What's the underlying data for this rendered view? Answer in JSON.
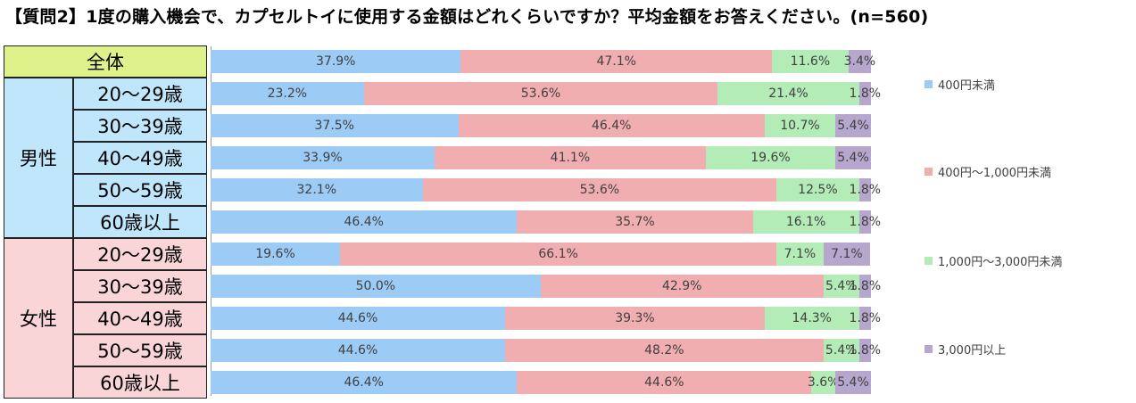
{
  "title": "【質問2】1度の購入機会で、カプセルトイに使用する金額はどれくらいですか？平均金額をお答えください。(n=560)",
  "groups": {
    "total": "全体",
    "male": "男性",
    "female": "女性"
  },
  "row_labels": [
    "全体",
    "20～29歳",
    "30～39歳",
    "40～49歳",
    "50～59歳",
    "60歳以上",
    "20～29歳",
    "30～39歳",
    "40～49歳",
    "50～59歳",
    "60歳以上"
  ],
  "colors": {
    "total_bg": "#dff18a",
    "male_bg": "#bfe6fa",
    "female_bg": "#f9d5d8",
    "series": [
      "#9ccbf5",
      "#f1aeb0",
      "#b4ecb8",
      "#b7a6cd"
    ]
  },
  "chart_data": {
    "type": "bar",
    "orientation": "horizontal",
    "stacked": "100%",
    "categories": [
      "全体",
      "男性 20～29歳",
      "男性 30～39歳",
      "男性 40～49歳",
      "男性 50～59歳",
      "男性 60歳以上",
      "女性 20～29歳",
      "女性 30～39歳",
      "女性 40～49歳",
      "女性 50～59歳",
      "女性 60歳以上"
    ],
    "series": [
      {
        "name": "400円未満",
        "values": [
          37.9,
          23.2,
          37.5,
          33.9,
          32.1,
          46.4,
          19.6,
          50.0,
          44.6,
          44.6,
          46.4
        ],
        "labels": [
          "37.9%",
          "23.2%",
          "37.5%",
          "33.9%",
          "32.1%",
          "46.4%",
          "19.6%",
          "50.0%",
          "44.6%",
          "44.6%",
          "46.4%"
        ]
      },
      {
        "name": "400円～1,000円未満",
        "values": [
          47.1,
          53.6,
          46.4,
          41.1,
          53.6,
          35.7,
          66.1,
          42.9,
          39.3,
          48.2,
          44.6
        ],
        "labels": [
          "47.1%",
          "53.6%",
          "46.4%",
          "41.1%",
          "53.6%",
          "35.7%",
          "66.1%",
          "42.9%",
          "39.3%",
          "48.2%",
          "44.6%"
        ]
      },
      {
        "name": "1,000円～3,000円未満",
        "values": [
          11.6,
          21.4,
          10.7,
          19.6,
          12.5,
          16.1,
          7.1,
          5.4,
          14.3,
          5.4,
          3.6
        ],
        "labels": [
          "11.6%",
          "21.4%",
          "10.7%",
          "19.6%",
          "12.5%",
          "16.1%",
          "7.1%",
          "5.4%",
          "14.3%",
          "5.4%",
          "3.6%"
        ]
      },
      {
        "name": "3,000円以上",
        "values": [
          3.4,
          1.8,
          5.4,
          5.4,
          1.8,
          1.8,
          7.1,
          1.8,
          1.8,
          1.8,
          5.4
        ],
        "labels": [
          "3.4%",
          "1.8%",
          "5.4%",
          "5.4%",
          "1.8%",
          "1.8%",
          "7.1%",
          "1.8%",
          "1.8%",
          "1.8%",
          "5.4%"
        ]
      }
    ],
    "xlim": [
      0,
      100
    ],
    "legend_position": "right",
    "grid": false
  }
}
